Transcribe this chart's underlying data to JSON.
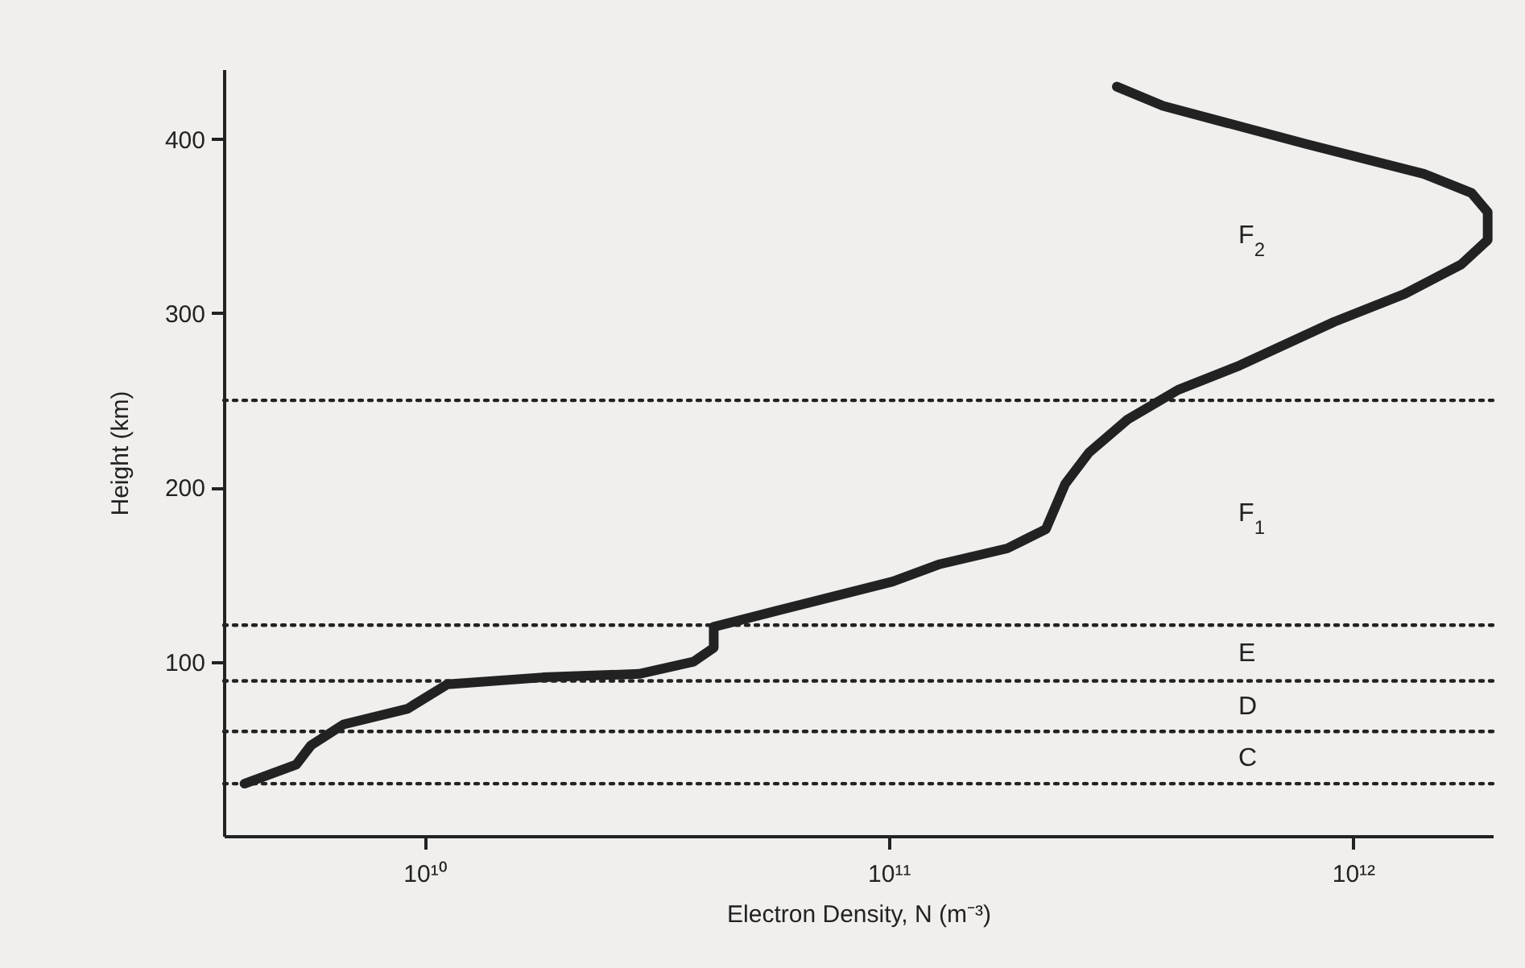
{
  "chart_data": {
    "type": "line",
    "xlabel": "Electron Density, N (m⁻³)",
    "ylabel": "Height (km)",
    "log": "x",
    "xlim": [
      3700000000.0,
      2000000000000.0
    ],
    "ylim": [
      0,
      440
    ],
    "xticks": [
      {
        "value": 10000000000.0,
        "label": "10¹⁰"
      },
      {
        "value": 100000000000.0,
        "label": "10¹¹"
      },
      {
        "value": 1000000000000.0,
        "label": "10¹²"
      }
    ],
    "yticks": [
      100,
      200,
      300,
      400
    ],
    "grid": false,
    "marker": "none",
    "line_style": "solid",
    "series": [
      {
        "color": "#222222",
        "x": [
          4100000000.0,
          5300000000.0,
          5700000000.0,
          6700000000.0,
          9200000000.0,
          11200000000.0,
          18000000000.0,
          29000000000.0,
          38000000000.0,
          42000000000.0,
          42000000000.0,
          57000000000.0,
          102000000000.0,
          129000000000.0,
          180000000000.0,
          218000000000.0,
          240000000000.0,
          270000000000.0,
          327000000000.0,
          420000000000.0,
          570000000000.0,
          910000000000.0,
          1290000000000.0,
          1710000000000.0,
          1950000000000.0,
          1950000000000.0,
          1800000000000.0,
          1420000000000.0,
          795000000000.0,
          390000000000.0,
          310000000000.0
        ],
        "values": [
          30,
          41,
          52,
          64,
          73,
          87,
          91,
          93,
          100,
          108,
          120,
          129,
          146,
          156,
          165,
          176,
          202,
          220,
          239,
          256,
          270,
          295,
          311,
          328,
          342,
          358,
          369,
          380,
          397,
          419,
          430
        ]
      }
    ],
    "ref_lines": [
      {
        "axis": "y",
        "value": 30,
        "line_style": "dotted",
        "color": "#222222"
      },
      {
        "axis": "y",
        "value": 60,
        "line_style": "dotted",
        "color": "#222222"
      },
      {
        "axis": "y",
        "value": 89,
        "line_style": "dotted",
        "color": "#222222"
      },
      {
        "axis": "y",
        "value": 121,
        "line_style": "dotted",
        "color": "#222222"
      },
      {
        "axis": "y",
        "value": 250,
        "line_style": "dotted",
        "color": "#222222"
      }
    ],
    "annotations": [
      "C",
      "D",
      "E",
      "F$_{1}$",
      "F$_{2}$"
    ]
  }
}
